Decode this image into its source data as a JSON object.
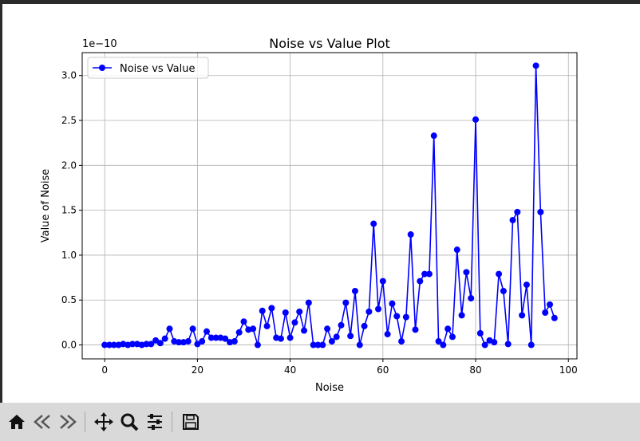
{
  "toolbar": {
    "icons": [
      "home-icon",
      "back-icon",
      "forward-icon",
      "pan-icon",
      "zoom-icon",
      "configure-icon",
      "save-icon"
    ]
  },
  "colors": {
    "line": "#0000ff",
    "grid": "#b0b0b0"
  },
  "chart_data": {
    "type": "line",
    "title": "Noise vs Value Plot",
    "xlabel": "Noise",
    "ylabel": "Value of Noise",
    "offset_text": "1e−10",
    "xlim": [
      -4.85,
      101.85
    ],
    "ylim": [
      -0.155,
      3.255
    ],
    "xticks": [
      0,
      20,
      40,
      60,
      80,
      100
    ],
    "xtick_labels": [
      "0",
      "20",
      "40",
      "60",
      "80",
      "100"
    ],
    "yticks": [
      0,
      0.5,
      1.0,
      1.5,
      2.0,
      2.5,
      3.0
    ],
    "ytick_labels": [
      "0.0",
      "0.5",
      "1.0",
      "1.5",
      "2.0",
      "2.5",
      "3.0"
    ],
    "grid": true,
    "legend": "upper left",
    "series": [
      {
        "name": "Noise vs Value",
        "color": "#0000ff",
        "marker": "circle",
        "x": [
          0,
          1,
          2,
          3,
          4,
          5,
          6,
          7,
          8,
          9,
          10,
          11,
          12,
          13,
          14,
          15,
          16,
          17,
          18,
          19,
          20,
          21,
          22,
          23,
          24,
          25,
          26,
          27,
          28,
          29,
          30,
          31,
          32,
          33,
          34,
          35,
          36,
          37,
          38,
          39,
          40,
          41,
          42,
          43,
          44,
          45,
          46,
          47,
          48,
          49,
          50,
          51,
          52,
          53,
          54,
          55,
          56,
          57,
          58,
          59,
          60,
          61,
          62,
          63,
          64,
          65,
          66,
          67,
          68,
          69,
          70,
          71,
          72,
          73,
          74,
          75,
          76,
          77,
          78,
          79,
          80,
          81,
          82,
          83,
          84,
          85,
          86,
          87,
          88,
          89,
          90,
          91,
          92,
          93,
          94,
          95,
          96,
          97
        ],
        "y": [
          0.0,
          0.0,
          0.0,
          0.0,
          0.01,
          0.0,
          0.01,
          0.01,
          0.0,
          0.01,
          0.01,
          0.05,
          0.02,
          0.07,
          0.18,
          0.04,
          0.03,
          0.03,
          0.04,
          0.18,
          0.01,
          0.04,
          0.15,
          0.08,
          0.08,
          0.08,
          0.07,
          0.03,
          0.04,
          0.14,
          0.26,
          0.17,
          0.18,
          0.0,
          0.38,
          0.21,
          0.41,
          0.08,
          0.07,
          0.36,
          0.08,
          0.25,
          0.37,
          0.16,
          0.47,
          0.0,
          0.0,
          0.0,
          0.18,
          0.04,
          0.09,
          0.22,
          0.47,
          0.1,
          0.6,
          0.0,
          0.21,
          0.37,
          1.35,
          0.4,
          0.71,
          0.12,
          0.46,
          0.32,
          0.04,
          0.31,
          1.23,
          0.17,
          0.71,
          0.79,
          0.79,
          2.33,
          0.04,
          0.0,
          0.18,
          0.09,
          1.06,
          0.33,
          0.81,
          0.52,
          2.51,
          0.13,
          0.0,
          0.05,
          0.03,
          0.79,
          0.6,
          0.01,
          1.39,
          1.48,
          0.33,
          0.67,
          0.0,
          3.11,
          1.48,
          0.36,
          0.45,
          0.3
        ]
      }
    ]
  }
}
